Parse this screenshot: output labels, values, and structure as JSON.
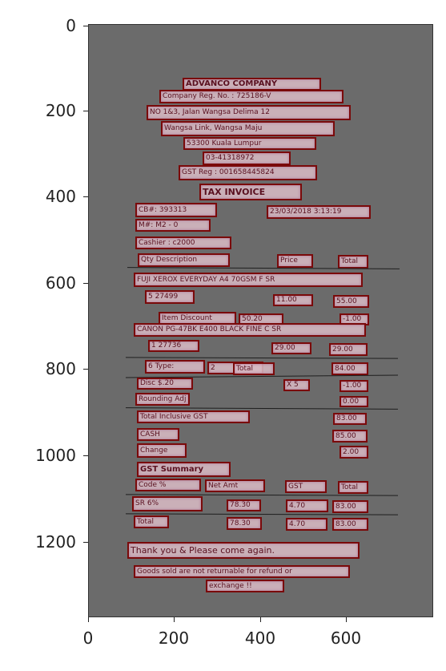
{
  "axes": {
    "x_ticks": [
      "0",
      "200",
      "400",
      "600"
    ],
    "y_ticks": [
      "0",
      "200",
      "400",
      "600",
      "800",
      "1000",
      "1200"
    ]
  },
  "receipt": {
    "company_name": "ADVANCO COMPANY",
    "company_reg": "Company Reg. No. : 725186-V",
    "address_line1": "NO 1&3, Jalan Wangsa Delima 12",
    "address_line2": "Wangsa Link, Wangsa Maju",
    "address_line3": "53300 Kuala Lumpur",
    "phone": "03-41318972",
    "gst_reg": "GST Reg : 001658445824",
    "doc_title": "TAX INVOICE",
    "cb_no": "CB#:  393313",
    "date_time": "23/03/2018 3:13:19",
    "machine": "M#:    M2 - 0",
    "cashier": "Cashier :  c2000",
    "hdr_qty_desc": "Qty  Description",
    "hdr_price": "Price",
    "hdr_total": "Total",
    "item1_desc": "FUJI XEROX EVERYDAY A4 70GSM F  SR",
    "item1_qty_code": "5  27499",
    "item1_price": "11.00",
    "item1_total": "55.00",
    "item_discount_label": "Item Discount",
    "item_discount_value": "50.20",
    "item_discount_total": "-1.00",
    "item2_desc": "CANON PG-47BK E400 BLACK FINE C  SR",
    "item2_qty_code": "1  27736",
    "item2_price": "29.00",
    "item2_total": "29.00",
    "types_label": "6  Type:",
    "types_count": "2",
    "types_total_label": "Total",
    "types_total": "84.00",
    "disc_label": "Disc $.20",
    "disc_mult": "X  5",
    "disc_value": "-1.00",
    "rounding_label": "Rounding Adj",
    "rounding_value": "0.00",
    "total_incl_label": "Total Inclusive GST",
    "total_incl_value": "83.00",
    "cash_label": "CASH",
    "cash_value": "85.00",
    "change_label": "Change",
    "change_value": "2.00",
    "gst_summary_label": "GST Summary",
    "gst_hdr_code": "Code     %",
    "gst_hdr_net": "Net Amt",
    "gst_hdr_gst": "GST",
    "gst_hdr_total": "Total",
    "gst_sr_code": "SR     6%",
    "gst_sr_net": "78.30",
    "gst_sr_gst": "4.70",
    "gst_sr_total": "83.00",
    "gst_total_label": "Total",
    "gst_total_net": "78.30",
    "gst_total_gst": "4.70",
    "gst_total_total": "83.00",
    "thank_you": "Thank you &  Please come again.",
    "footer_note": "Goods sold are not returnable for refund or",
    "footer_exchange": "exchange !!"
  }
}
